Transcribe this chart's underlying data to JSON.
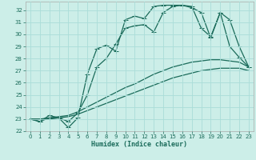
{
  "title": "",
  "xlabel": "Humidex (Indice chaleur)",
  "background_color": "#cceee8",
  "grid_color": "#aaddd8",
  "line_color": "#1a6b5a",
  "xlim": [
    -0.5,
    23.5
  ],
  "ylim": [
    22,
    32.7
  ],
  "yticks": [
    22,
    23,
    24,
    25,
    26,
    27,
    28,
    29,
    30,
    31,
    32
  ],
  "xticks": [
    0,
    1,
    2,
    3,
    4,
    5,
    6,
    7,
    8,
    9,
    10,
    11,
    12,
    13,
    14,
    15,
    16,
    17,
    18,
    19,
    20,
    21,
    22,
    23
  ],
  "line1_x": [
    0,
    1,
    2,
    3,
    4,
    5,
    6,
    7,
    8,
    9,
    10,
    11,
    12,
    13,
    14,
    15,
    16,
    17,
    18,
    19,
    20,
    21,
    22,
    23
  ],
  "line1_y": [
    23.0,
    22.8,
    23.3,
    23.1,
    22.3,
    23.1,
    26.7,
    28.8,
    29.1,
    28.6,
    31.2,
    31.5,
    31.3,
    32.3,
    32.4,
    32.4,
    32.4,
    32.2,
    31.8,
    29.7,
    31.8,
    29.0,
    28.1,
    27.3
  ],
  "line2_x": [
    0,
    1,
    2,
    3,
    4,
    5,
    6,
    7,
    8,
    9,
    10,
    11,
    12,
    13,
    14,
    15,
    16,
    17,
    18,
    19,
    20,
    21,
    22,
    23
  ],
  "line2_y": [
    23.0,
    22.8,
    23.1,
    23.1,
    22.8,
    23.5,
    25.0,
    27.3,
    28.0,
    29.2,
    30.5,
    30.7,
    30.8,
    30.2,
    31.8,
    32.3,
    32.4,
    32.3,
    30.5,
    29.8,
    31.8,
    31.2,
    29.0,
    27.3
  ],
  "line3_x": [
    0,
    1,
    2,
    3,
    4,
    5,
    6,
    7,
    8,
    9,
    10,
    11,
    12,
    13,
    14,
    15,
    16,
    17,
    18,
    19,
    20,
    21,
    22,
    23
  ],
  "line3_y": [
    23.0,
    23.0,
    23.1,
    23.2,
    23.3,
    23.6,
    24.0,
    24.4,
    24.8,
    25.2,
    25.6,
    25.9,
    26.3,
    26.7,
    27.0,
    27.3,
    27.5,
    27.7,
    27.8,
    27.9,
    27.9,
    27.8,
    27.7,
    27.3
  ],
  "line4_x": [
    0,
    1,
    2,
    3,
    4,
    5,
    6,
    7,
    8,
    9,
    10,
    11,
    12,
    13,
    14,
    15,
    16,
    17,
    18,
    19,
    20,
    21,
    22,
    23
  ],
  "line4_y": [
    23.0,
    23.0,
    23.0,
    23.1,
    23.2,
    23.4,
    23.7,
    24.0,
    24.3,
    24.6,
    24.9,
    25.2,
    25.5,
    25.8,
    26.1,
    26.4,
    26.6,
    26.8,
    27.0,
    27.1,
    27.2,
    27.2,
    27.2,
    27.0
  ],
  "marker": "+",
  "marker_size": 4,
  "linewidth": 0.9
}
